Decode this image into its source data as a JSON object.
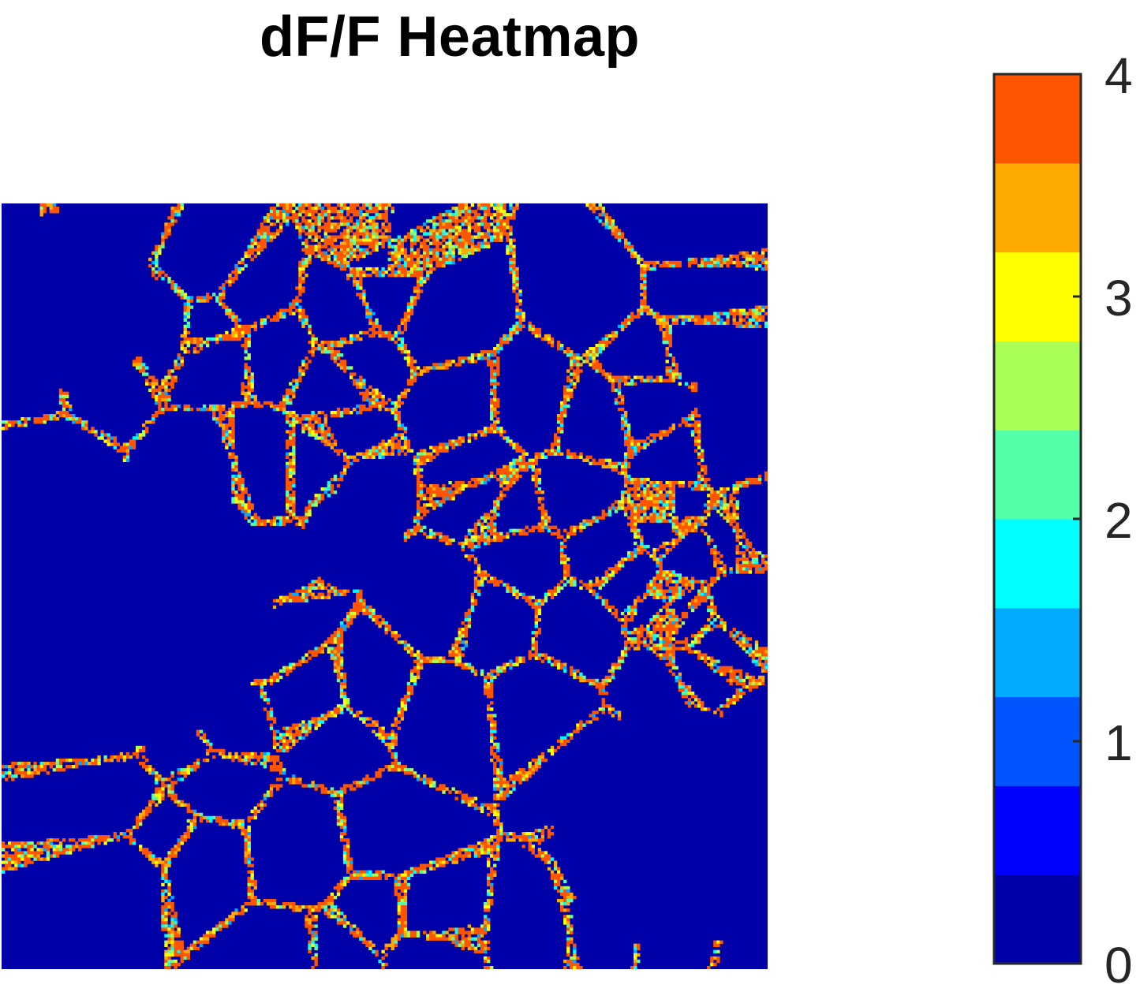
{
  "chart_data": {
    "type": "heatmap",
    "title": "dF/F Heatmap",
    "xlabel": "",
    "ylabel": "",
    "colorbar": {
      "min": 0,
      "max": 4,
      "levels": 9,
      "colors": [
        "#0000a8",
        "#0000ff",
        "#0055ff",
        "#00aaff",
        "#00ffff",
        "#55ffaa",
        "#aaff55",
        "#ffff00",
        "#ffaa00",
        "#ff5500"
      ],
      "tick_values": [
        0,
        1,
        2,
        3,
        4
      ],
      "tick_labels": [
        "0",
        "1",
        "2",
        "3",
        "4"
      ],
      "placement": "right"
    },
    "grid": false,
    "background_color": "#0000a8",
    "description_hidden": true
  }
}
